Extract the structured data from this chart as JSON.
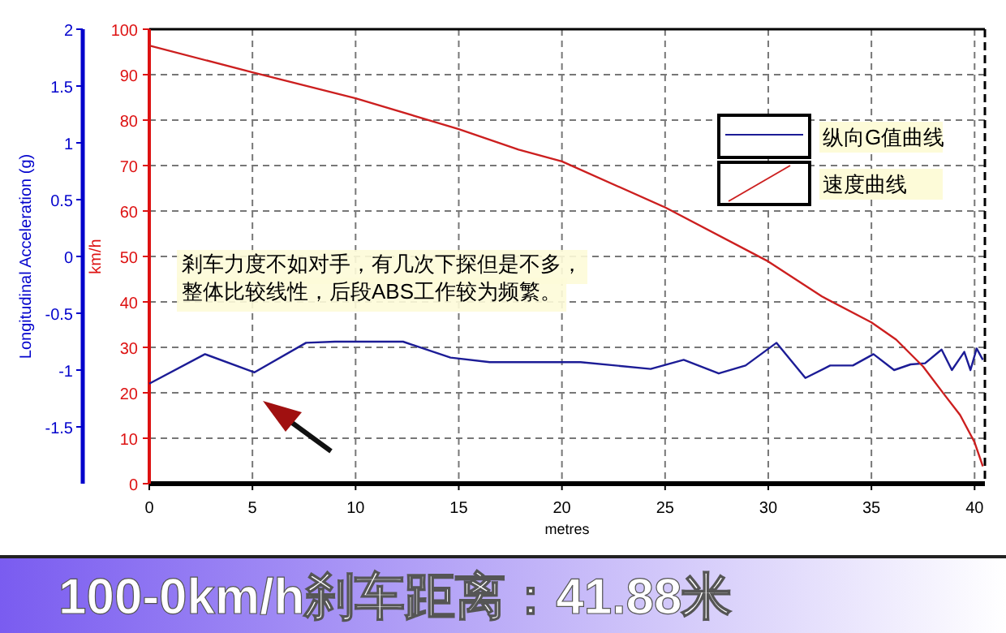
{
  "chart_data": {
    "type": "line",
    "title": "100-0km/h刹车距离：41.88米",
    "xlabel": "metres",
    "ylabel": "km/h",
    "y2label": "Longitudinal Acceleration (g)",
    "xlim": [
      0,
      40.5
    ],
    "xticks": [
      0,
      5,
      10,
      15,
      20,
      25,
      30,
      35,
      40
    ],
    "ylim": [
      0,
      100
    ],
    "yticks": [
      0,
      10,
      20,
      30,
      40,
      50,
      60,
      70,
      80,
      90,
      100
    ],
    "y2lim": [
      -2,
      2
    ],
    "y2ticks": [
      -1.5,
      -1,
      -0.5,
      0,
      0.5,
      1,
      1.5,
      2
    ],
    "grid": true,
    "legend": "top right",
    "line_style": "solid",
    "annotations": [
      "剎车力度不如对手，有几次下探但是不多，",
      "整体比较线性，后段ABS工作较为频繁。"
    ],
    "series": [
      {
        "name": "纵向G值曲线",
        "color": "#1c1c96",
        "axis": "y2",
        "x": [
          0,
          2.7,
          5.1,
          7.6,
          9.0,
          12.3,
          14.6,
          16.5,
          20.9,
          24.3,
          25.9,
          27.6,
          28.9,
          30.4,
          31.8,
          33.0,
          34.1,
          35.1,
          36.1,
          36.9,
          37.6,
          38.4,
          38.9,
          39.5,
          39.8,
          40.1,
          40.4
        ],
        "values": [
          -1.12,
          -0.86,
          -1.02,
          -0.76,
          -0.75,
          -0.75,
          -0.89,
          -0.93,
          -0.93,
          -0.99,
          -0.91,
          -1.03,
          -0.96,
          -0.76,
          -1.07,
          -0.96,
          -0.96,
          -0.86,
          -1.0,
          -0.95,
          -0.94,
          -0.82,
          -1.0,
          -0.84,
          -1.0,
          -0.81,
          -0.91
        ]
      },
      {
        "name": "速度曲线",
        "color": "#cc1f1f",
        "x": [
          0,
          5,
          10,
          15,
          17.9,
          20,
          25,
          30,
          32.6,
          35,
          36.2,
          37.5,
          38.5,
          39.3,
          40,
          40.4
        ],
        "values": [
          96.4,
          90.5,
          84.8,
          78.0,
          73.5,
          70.9,
          60.8,
          48.9,
          41.2,
          35.5,
          31.7,
          25.8,
          19.8,
          15.1,
          9.1,
          3.8
        ]
      }
    ]
  }
}
